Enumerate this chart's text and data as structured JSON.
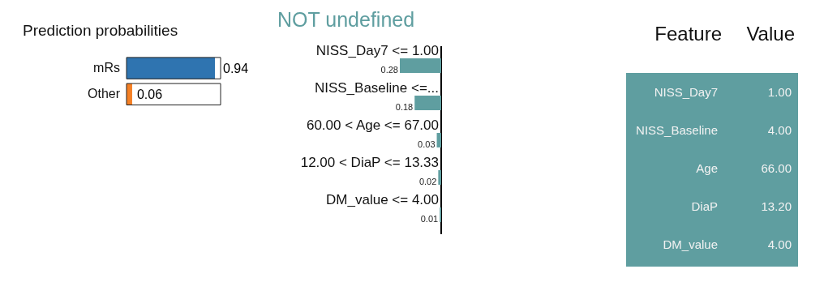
{
  "chart_data": [
    {
      "type": "bar",
      "orientation": "horizontal",
      "title": "Prediction probabilities",
      "categories": [
        "mRs",
        "Other"
      ],
      "values": [
        0.94,
        0.06
      ],
      "colors": [
        "#2f74b0",
        "#f58025"
      ],
      "xlim": [
        0,
        1
      ],
      "tick_labels": "y",
      "data_labels": true
    },
    {
      "type": "bar",
      "orientation": "horizontal",
      "title": "NOT undefined",
      "categories": [
        "NISS_Day7 <= 1.00",
        "NISS_Baseline <=...",
        "60.00 < Age <= 67.00",
        "12.00 < DiaP <= 13.33",
        "DM_value <= 4.00"
      ],
      "values": [
        0.28,
        0.18,
        0.03,
        0.02,
        0.01
      ],
      "color": "#5f9ea0",
      "xlim": [
        0.28,
        0
      ],
      "tick_labels": "y",
      "data_labels": true
    },
    {
      "type": "other",
      "categories": [
        "Feature",
        "Value"
      ],
      "cell_labels": [
        [
          "NISS_Day7",
          "1.00"
        ],
        [
          "NISS_Baseline",
          "4.00"
        ],
        [
          "Age",
          "66.00"
        ],
        [
          "DiaP",
          "13.20"
        ],
        [
          "DM_value",
          "4.00"
        ]
      ],
      "color": "#5f9ea0"
    }
  ]
}
